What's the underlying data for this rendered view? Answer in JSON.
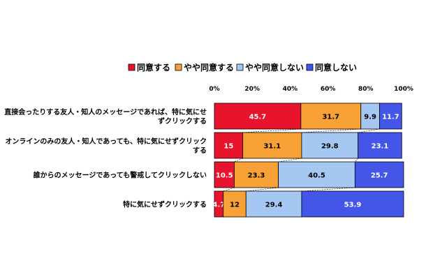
{
  "chart_data": {
    "type": "bar",
    "orientation": "horizontal",
    "stacked": true,
    "normalized": true,
    "title": "",
    "xlabel": "",
    "ylabel": "",
    "xlim": [
      0,
      100
    ],
    "x_ticks": [
      "0%",
      "20%",
      "40%",
      "60%",
      "80%",
      "100%"
    ],
    "grid": false,
    "legend_position": "top",
    "categories": [
      [
        "直接会ったりする友人・知人のメッセージであれば、特に気にせ",
        "ずクリックする"
      ],
      [
        "オンラインのみの友人・知人であっても、特に気にせずクリック",
        "する"
      ],
      [
        "誰からのメッセージであっても警戒してクリックしない"
      ],
      [
        "特に気にせずクリックする"
      ]
    ],
    "series": [
      {
        "name": "同意する",
        "color": "#e8132c",
        "label_color": "#ffffff",
        "values": [
          45.7,
          15,
          10.5,
          4.7
        ]
      },
      {
        "name": "やや同意する",
        "color": "#f7a136",
        "label_color": "#000000",
        "values": [
          31.7,
          31.1,
          23.3,
          12
        ]
      },
      {
        "name": "やや同意しない",
        "color": "#a5c8f3",
        "label_color": "#000000",
        "values": [
          9.9,
          29.8,
          40.5,
          29.4
        ]
      },
      {
        "name": "同意しない",
        "color": "#4356e8",
        "label_color": "#ffffff",
        "values": [
          11.7,
          23.1,
          25.7,
          53.9
        ]
      }
    ]
  }
}
